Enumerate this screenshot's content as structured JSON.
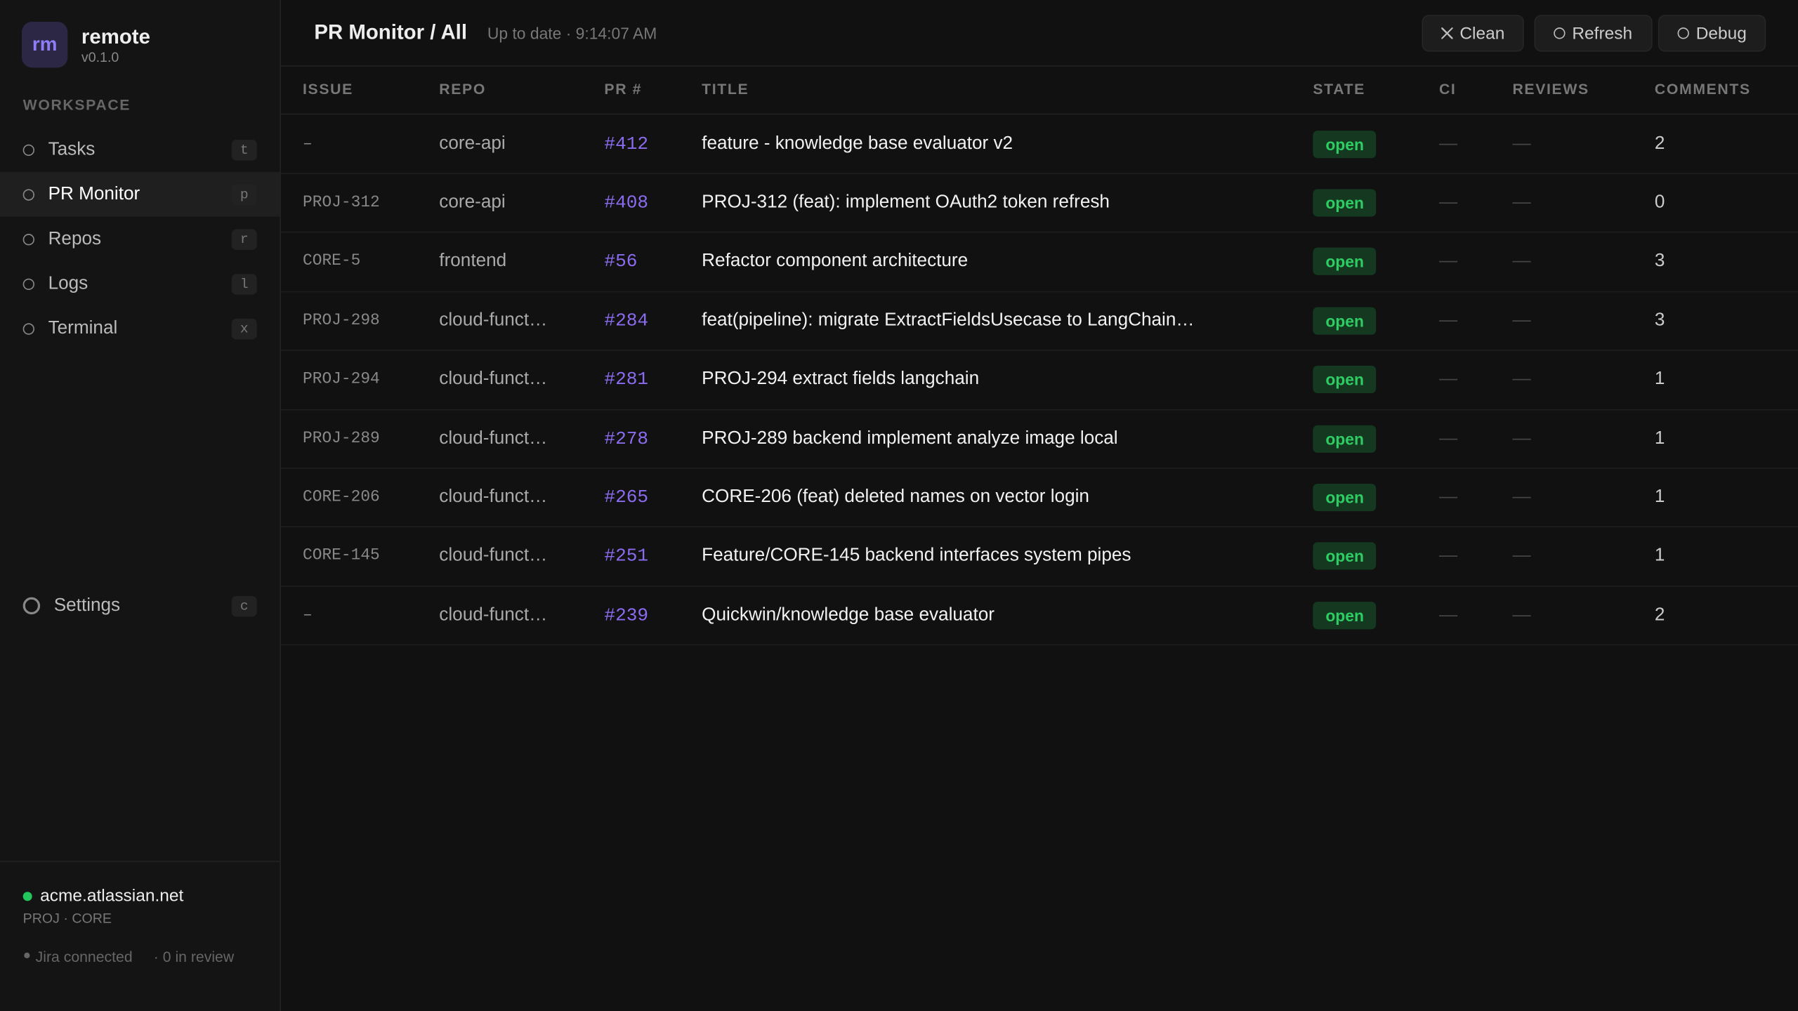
{
  "sidebar": {
    "brand": {
      "logo": "rm",
      "name": "remote",
      "version": "v0.1.0"
    },
    "section": "WORKSPACE",
    "nav": [
      {
        "label": "Tasks",
        "key": "t"
      },
      {
        "label": "PR Monitor",
        "key": "p"
      },
      {
        "label": "Repos",
        "key": "r"
      },
      {
        "label": "Logs",
        "key": "l"
      },
      {
        "label": "Terminal",
        "key": "x"
      }
    ],
    "settings": {
      "label": "Settings",
      "key": "c"
    },
    "footer": {
      "host": "acme.atlassian.net",
      "projects": "PROJ · CORE",
      "jira": "Jira connected",
      "review": "· 0 in review"
    }
  },
  "header": {
    "title": "PR Monitor / All",
    "status": "Up to date · 9:14:07 AM",
    "buttons": [
      "Clean",
      "Refresh",
      "Debug"
    ]
  },
  "table": {
    "columns": [
      "ISSUE",
      "REPO",
      "PR #",
      "TITLE",
      "STATE",
      "CI",
      "REVIEWS",
      "COMMENTS"
    ],
    "rows": [
      {
        "issue": "–",
        "repo": "core-api",
        "pr": "#412",
        "title": "feature - knowledge base evaluator v2",
        "state": "open",
        "ci": "—",
        "reviews": "—",
        "comments": 2
      },
      {
        "issue": "PROJ-312",
        "repo": "core-api",
        "pr": "#408",
        "title": "PROJ-312 (feat): implement OAuth2 token refresh",
        "state": "open",
        "ci": "—",
        "reviews": "—",
        "comments": 0
      },
      {
        "issue": "CORE-5",
        "repo": "frontend",
        "pr": "#56",
        "title": "Refactor component architecture",
        "state": "open",
        "ci": "—",
        "reviews": "—",
        "comments": 3
      },
      {
        "issue": "PROJ-298",
        "repo": "cloud-funct…",
        "pr": "#284",
        "title": "feat(pipeline): migrate ExtractFieldsUsecase to LangChain…",
        "state": "open",
        "ci": "—",
        "reviews": "—",
        "comments": 3
      },
      {
        "issue": "PROJ-294",
        "repo": "cloud-funct…",
        "pr": "#281",
        "title": "PROJ-294 extract fields langchain",
        "state": "open",
        "ci": "—",
        "reviews": "—",
        "comments": 1
      },
      {
        "issue": "PROJ-289",
        "repo": "cloud-funct…",
        "pr": "#278",
        "title": "PROJ-289 backend implement analyze image local",
        "state": "open",
        "ci": "—",
        "reviews": "—",
        "comments": 1
      },
      {
        "issue": "CORE-206",
        "repo": "cloud-funct…",
        "pr": "#265",
        "title": "CORE-206 (feat) deleted names on vector login",
        "state": "open",
        "ci": "—",
        "reviews": "—",
        "comments": 1
      },
      {
        "issue": "CORE-145",
        "repo": "cloud-funct…",
        "pr": "#251",
        "title": "Feature/CORE-145 backend interfaces system pipes",
        "state": "open",
        "ci": "—",
        "reviews": "—",
        "comments": 1
      },
      {
        "issue": "–",
        "repo": "cloud-funct…",
        "pr": "#239",
        "title": "Quickwin/knowledge base evaluator",
        "state": "open",
        "ci": "—",
        "reviews": "—",
        "comments": 2
      }
    ]
  }
}
